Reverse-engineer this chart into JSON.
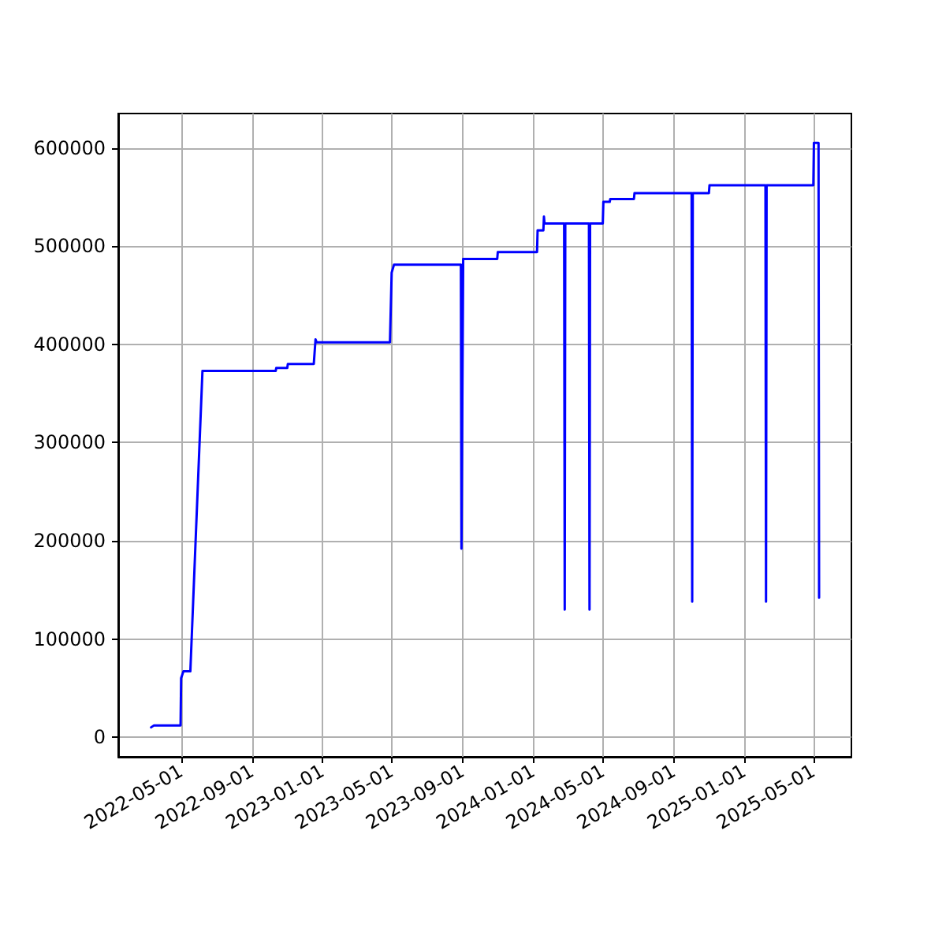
{
  "chart_data": {
    "type": "line",
    "xlim": [
      "2022-01-12",
      "2025-07-06"
    ],
    "ylim": [
      -20000,
      635000
    ],
    "xticks": [
      "2022-05-01",
      "2022-09-01",
      "2023-01-01",
      "2023-05-01",
      "2023-09-01",
      "2024-01-01",
      "2024-05-01",
      "2024-09-01",
      "2025-01-01",
      "2025-05-01"
    ],
    "yticks": [
      0,
      100000,
      200000,
      300000,
      400000,
      500000,
      600000
    ],
    "grid": true,
    "marker": "none",
    "line_style": "solid",
    "series": [
      {
        "color": "#0000ff",
        "x": [
          "2022-03-10",
          "2022-03-15",
          "2022-04-30",
          "2022-05-01",
          "2022-05-05",
          "2022-05-17",
          "2022-06-07",
          "2022-10-12",
          "2022-10-13",
          "2022-11-01",
          "2022-11-02",
          "2022-12-17",
          "2022-12-20",
          "2022-12-22",
          "2023-04-28",
          "2023-05-01",
          "2023-05-05",
          "2023-08-29",
          "2023-08-30",
          "2023-09-02",
          "2023-10-31",
          "2023-11-01",
          "2024-01-08",
          "2024-01-09",
          "2024-01-19",
          "2024-01-20",
          "2024-01-21",
          "2024-02-24",
          "2024-02-25",
          "2024-02-26",
          "2024-04-07",
          "2024-04-08",
          "2024-04-09",
          "2024-05-01",
          "2024-05-02",
          "2024-05-13",
          "2024-05-14",
          "2024-06-24",
          "2024-06-25",
          "2024-10-02",
          "2024-10-03",
          "2024-10-04",
          "2024-11-01",
          "2024-11-02",
          "2025-02-07",
          "2025-02-08",
          "2025-02-09",
          "2025-05-01",
          "2025-05-02",
          "2025-05-10",
          "2025-05-11"
        ],
        "values": [
          10000,
          12000,
          12000,
          60000,
          67000,
          67000,
          373000,
          373000,
          376000,
          376000,
          380000,
          380000,
          405000,
          402000,
          402000,
          473000,
          481000,
          481000,
          192000,
          487000,
          487000,
          494000,
          494000,
          516000,
          516000,
          530000,
          523000,
          523000,
          130000,
          523000,
          523000,
          130000,
          523000,
          523000,
          545000,
          545000,
          548000,
          548000,
          554000,
          554000,
          138000,
          554000,
          554000,
          562000,
          562000,
          138000,
          562000,
          562000,
          605000,
          605000,
          142000
        ]
      }
    ]
  }
}
